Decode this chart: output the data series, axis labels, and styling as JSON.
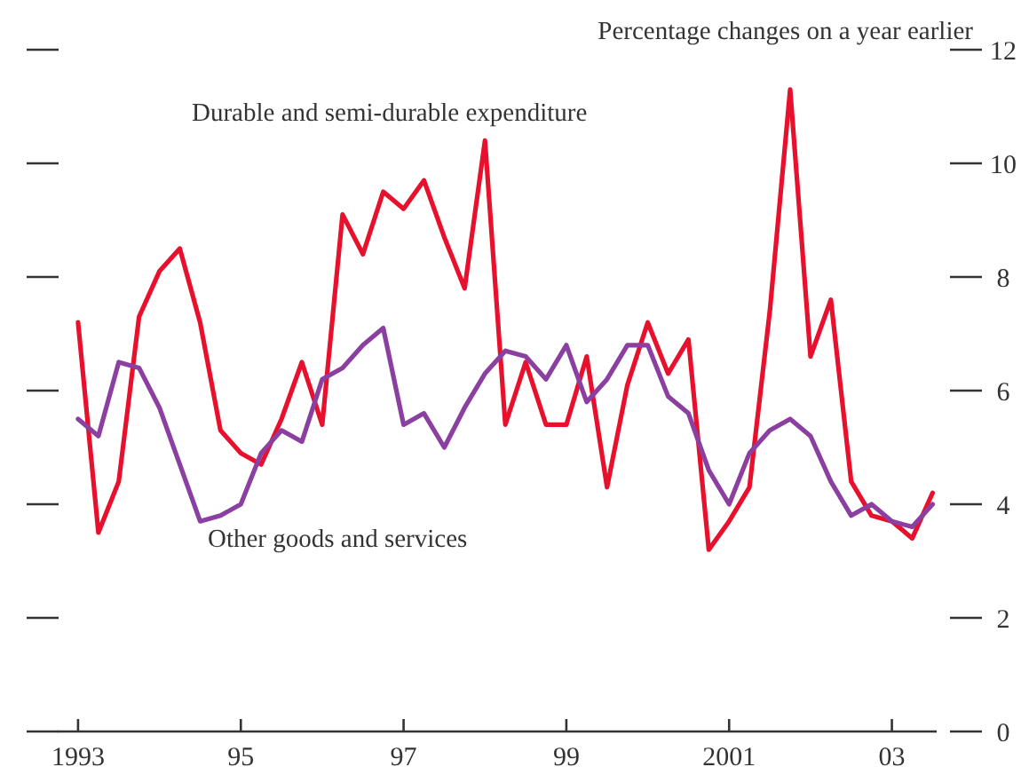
{
  "chart_data": {
    "type": "line",
    "ylabel": "Percentage changes on a year earlier",
    "x": [
      1993,
      1993.25,
      1993.5,
      1993.75,
      1994,
      1994.25,
      1994.5,
      1994.75,
      1995,
      1995.25,
      1995.5,
      1995.75,
      1996,
      1996.25,
      1996.5,
      1996.75,
      1997,
      1997.25,
      1997.5,
      1997.75,
      1998,
      1998.25,
      1998.5,
      1998.75,
      1999,
      1999.25,
      1999.5,
      1999.75,
      2000,
      2000.25,
      2000.5,
      2000.75,
      2001,
      2001.25,
      2001.5,
      2001.75,
      2002,
      2002.25,
      2002.5,
      2002.75,
      2003,
      2003.25,
      2003.5
    ],
    "series": [
      {
        "name": "Durable and semi-durable expenditure",
        "color": "#e8112d",
        "values": [
          7.2,
          3.5,
          4.4,
          7.3,
          8.1,
          8.5,
          7.2,
          5.3,
          4.9,
          4.7,
          5.5,
          6.5,
          5.4,
          9.1,
          8.4,
          9.5,
          9.2,
          9.7,
          8.7,
          7.8,
          10.4,
          5.4,
          6.5,
          5.4,
          5.4,
          6.6,
          4.3,
          6.1,
          7.2,
          6.3,
          6.9,
          3.2,
          3.7,
          4.3,
          7.4,
          11.3,
          6.6,
          7.6,
          4.4,
          3.8,
          3.7,
          3.4,
          4.2
        ]
      },
      {
        "name": "Other goods and services",
        "color": "#8b3fa0",
        "values": [
          5.5,
          5.2,
          6.5,
          6.4,
          5.7,
          4.7,
          3.7,
          3.8,
          4.0,
          4.9,
          5.3,
          5.1,
          6.2,
          6.4,
          6.8,
          7.1,
          5.4,
          5.6,
          5.0,
          5.7,
          6.3,
          6.7,
          6.6,
          6.2,
          6.8,
          5.8,
          6.2,
          6.8,
          6.8,
          5.9,
          5.6,
          4.6,
          4.0,
          4.9,
          5.3,
          5.5,
          5.2,
          4.4,
          3.8,
          4.0,
          3.7,
          3.6,
          4.0
        ]
      }
    ],
    "xlim": [
      1992.75,
      2003.55
    ],
    "xticks": [
      1993,
      {
        "value": 1995,
        "label": "95"
      },
      {
        "value": 1997,
        "label": "97"
      },
      {
        "value": 1999,
        "label": "99"
      },
      2001,
      {
        "value": 2003,
        "label": "03"
      }
    ],
    "ylim": [
      0,
      12
    ],
    "yticks": [
      0,
      2,
      4,
      6,
      8,
      10,
      12
    ],
    "grid": false,
    "line_style": "solid"
  }
}
